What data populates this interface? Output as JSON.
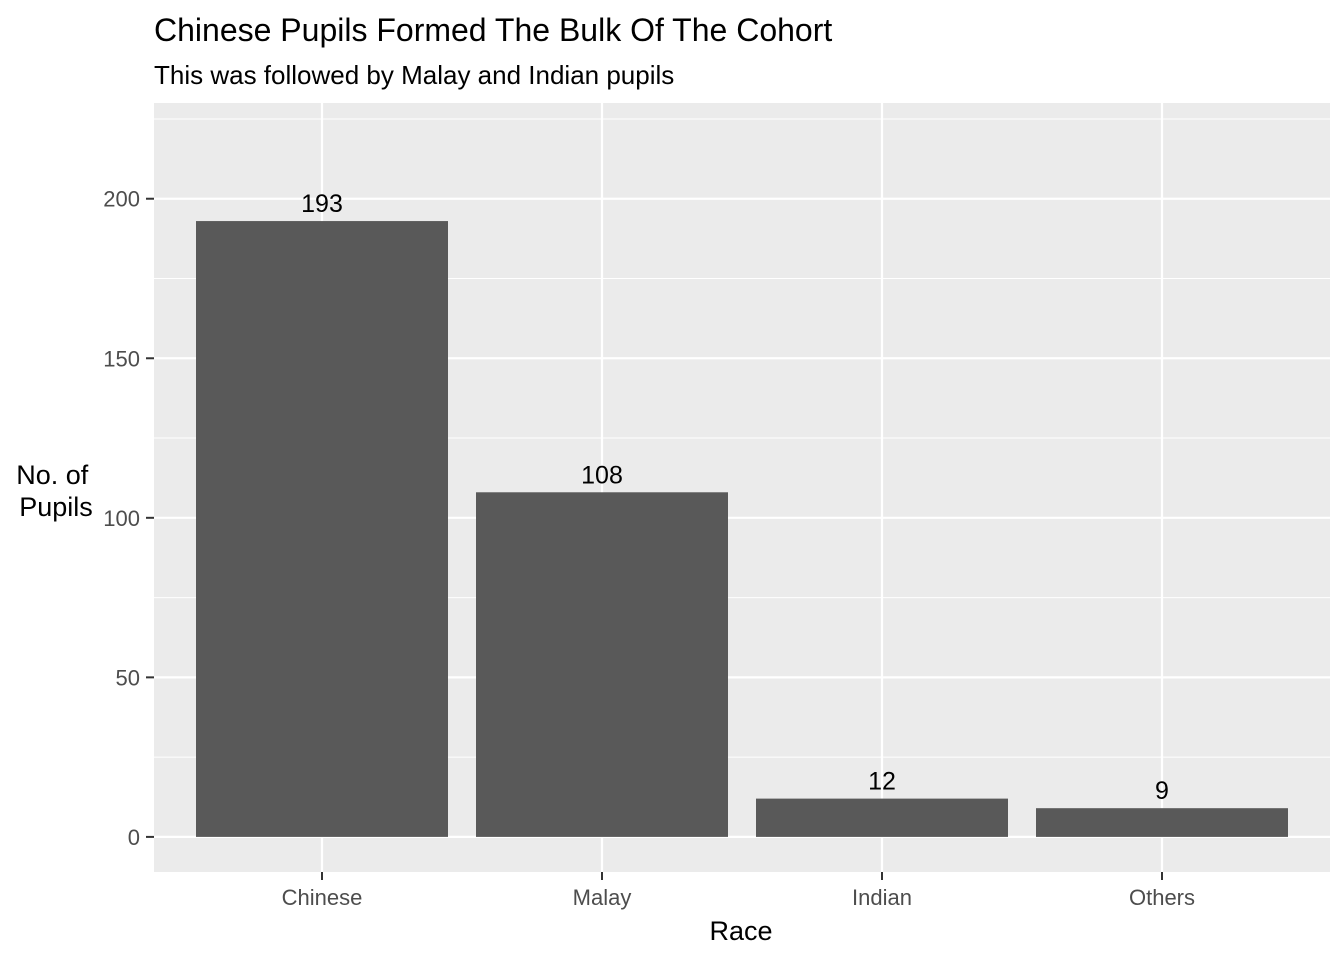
{
  "chart_data": {
    "type": "bar",
    "title": "Chinese Pupils Formed The Bulk Of The Cohort",
    "subtitle": "This was followed by Malay and Indian pupils",
    "xlabel": "Race",
    "ylabel_lines": [
      "No. of",
      "Pupils"
    ],
    "categories": [
      "Chinese",
      "Malay",
      "Indian",
      "Others"
    ],
    "values": [
      193,
      108,
      12,
      9
    ],
    "data_labels": [
      "193",
      "108",
      "12",
      "9"
    ],
    "ylim": [
      -11,
      230
    ],
    "yticks": [
      0,
      50,
      100,
      150,
      200
    ],
    "ytick_labels": [
      "0",
      "50",
      "100",
      "150",
      "200"
    ],
    "grid": true,
    "legend": "none",
    "colors": {
      "bar": "#595959",
      "panel_background": "#ebebeb",
      "grid": "#ffffff",
      "tick": "#333333"
    }
  }
}
